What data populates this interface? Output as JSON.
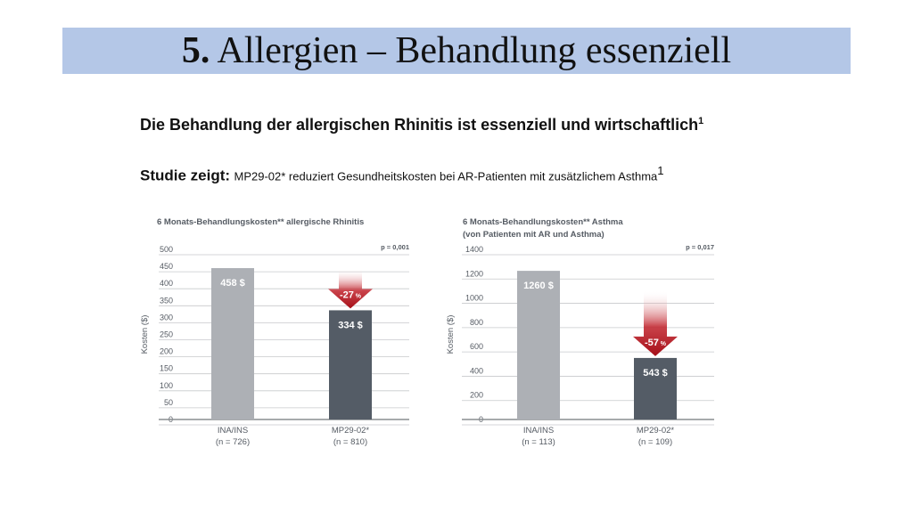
{
  "slide": {
    "title_number": "5.",
    "title_text": "Allergien – Behandlung essenziell",
    "subtitle": "Die Behandlung der allergischen Rhinitis ist essenziell und wirtschaftlich",
    "subtitle_sup": "1",
    "study_prefix": "Studie zeigt:",
    "study_text": "MP29-02* reduziert Gesundheitskosten bei AR-Patienten mit zusätzlichem Asthma",
    "study_sup": "1"
  },
  "chart_data": [
    {
      "type": "bar",
      "title": "6 Monats-Behandlungskosten** allergische Rhinitis",
      "subtitle": "",
      "ylabel": "Kosten ($)",
      "xlabel": "",
      "ylim": [
        0,
        500
      ],
      "yticks": [
        0,
        50,
        100,
        150,
        200,
        250,
        300,
        350,
        400,
        450,
        500
      ],
      "grid": true,
      "p_value": "p = 0,001",
      "categories": [
        "INA/INS",
        "MP29-02*"
      ],
      "category_sub": [
        "(n = 726)",
        "(n = 810)"
      ],
      "values": [
        458,
        334
      ],
      "value_labels": [
        "458 $",
        "334 $"
      ],
      "colors": [
        "#adb0b5",
        "#545c66"
      ],
      "change_label": "-27",
      "change_unit": "%",
      "arrow_color": "#b5121b"
    },
    {
      "type": "bar",
      "title": "6 Monats-Behandlungskosten** Asthma",
      "subtitle": "(von Patienten mit AR und Asthma)",
      "ylabel": "Kosten ($)",
      "xlabel": "",
      "ylim": [
        0,
        1400
      ],
      "yticks": [
        0,
        200,
        400,
        600,
        800,
        1000,
        1200,
        1400
      ],
      "grid": true,
      "p_value": "p = 0,017",
      "categories": [
        "INA/INS",
        "MP29-02*"
      ],
      "category_sub": [
        "(n = 113)",
        "(n = 109)"
      ],
      "values": [
        1260,
        543
      ],
      "value_labels": [
        "1260 $",
        "543 $"
      ],
      "colors": [
        "#adb0b5",
        "#545c66"
      ],
      "change_label": "-57",
      "change_unit": "%",
      "arrow_color": "#b5121b"
    }
  ]
}
